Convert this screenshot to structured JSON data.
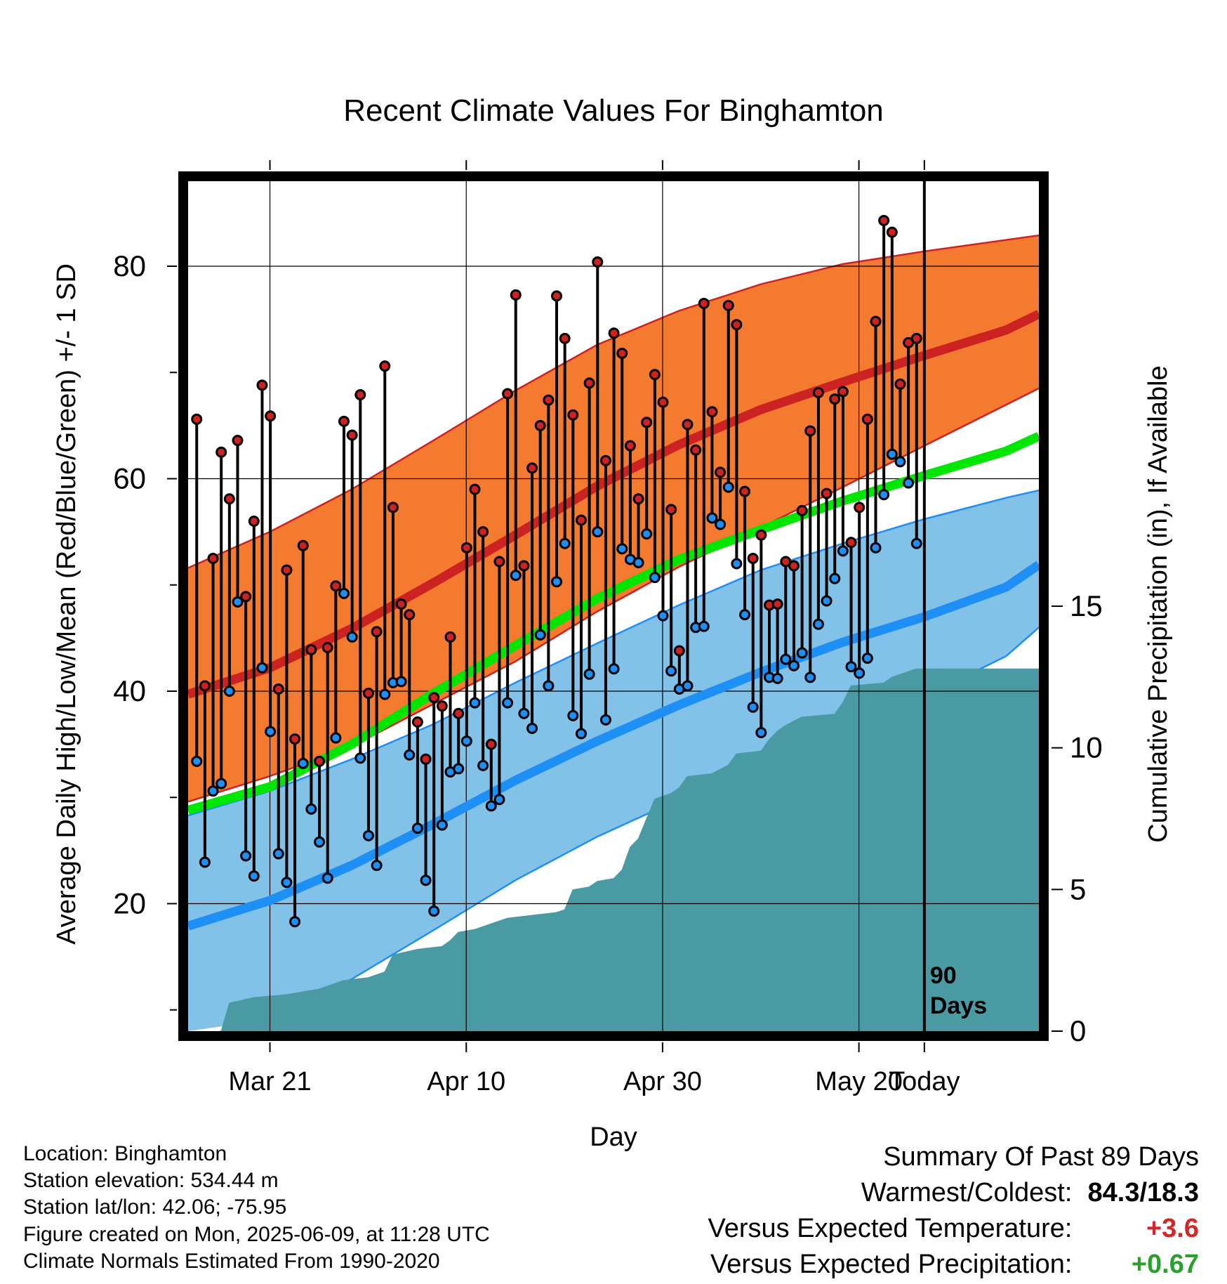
{
  "chart_data": {
    "type": "line",
    "title": "Recent Climate Values For Binghamton",
    "xlabel": "Day",
    "ylabel": "Average Daily High/Low/Mean (Red/Blue/Green) +/- 1 SD",
    "ylabel_right": "Cumulative Precipitation (in), If Available",
    "ylim": [
      8,
      88
    ],
    "y2lim": [
      0,
      30
    ],
    "yticks": [
      20,
      40,
      60,
      80
    ],
    "y2ticks": [
      0,
      5,
      10,
      15
    ],
    "x_tick_labels": [
      "Mar 21",
      "Apr 10",
      "Apr 30",
      "May 20",
      "Today"
    ],
    "marker_label": [
      "90",
      "Days"
    ],
    "grid": true,
    "expected_high": [
      [
        0,
        39.7
      ],
      [
        10,
        42.2
      ],
      [
        20,
        45.9
      ],
      [
        30,
        50.2
      ],
      [
        40,
        54.7
      ],
      [
        50,
        59.3
      ],
      [
        60,
        63.2
      ],
      [
        70,
        66.5
      ],
      [
        80,
        69.1
      ],
      [
        90,
        71.6
      ],
      [
        100,
        74.0
      ],
      [
        104,
        75.5
      ]
    ],
    "expected_high_band": {
      "upper": [
        [
          0,
          51.6
        ],
        [
          10,
          55.0
        ],
        [
          20,
          59.0
        ],
        [
          30,
          63.6
        ],
        [
          40,
          68.3
        ],
        [
          50,
          72.6
        ],
        [
          60,
          75.8
        ],
        [
          70,
          78.3
        ],
        [
          80,
          80.2
        ],
        [
          90,
          81.4
        ],
        [
          104,
          82.9
        ]
      ],
      "lower": [
        [
          0,
          29.6
        ],
        [
          10,
          32.0
        ],
        [
          20,
          34.8
        ],
        [
          30,
          38.8
        ],
        [
          40,
          42.8
        ],
        [
          50,
          47.5
        ],
        [
          60,
          51.7
        ],
        [
          70,
          55.4
        ],
        [
          80,
          59.2
        ],
        [
          90,
          63.1
        ],
        [
          104,
          68.5
        ]
      ]
    },
    "expected_low": [
      [
        0,
        17.9
      ],
      [
        10,
        20.3
      ],
      [
        20,
        23.6
      ],
      [
        30,
        27.5
      ],
      [
        40,
        31.6
      ],
      [
        50,
        35.3
      ],
      [
        60,
        38.7
      ],
      [
        70,
        41.8
      ],
      [
        80,
        44.6
      ],
      [
        90,
        47.0
      ],
      [
        100,
        49.8
      ],
      [
        104,
        51.9
      ]
    ],
    "expected_low_band": {
      "upper": [
        [
          0,
          28.3
        ],
        [
          10,
          30.6
        ],
        [
          20,
          33.6
        ],
        [
          30,
          36.9
        ],
        [
          40,
          40.8
        ],
        [
          50,
          44.5
        ],
        [
          60,
          48.1
        ],
        [
          70,
          51.4
        ],
        [
          80,
          53.9
        ],
        [
          90,
          56.2
        ],
        [
          100,
          58.2
        ],
        [
          104,
          58.9
        ]
      ],
      "lower": [
        [
          0,
          7.2
        ],
        [
          10,
          9.1
        ],
        [
          20,
          12.9
        ],
        [
          30,
          17.5
        ],
        [
          40,
          22.2
        ],
        [
          50,
          26.3
        ],
        [
          60,
          29.8
        ],
        [
          70,
          33.0
        ],
        [
          80,
          36.4
        ],
        [
          90,
          39.5
        ],
        [
          100,
          43.3
        ],
        [
          104,
          46.0
        ]
      ]
    },
    "expected_mean": [
      [
        0,
        28.8
      ],
      [
        10,
        31.0
      ],
      [
        20,
        35.0
      ],
      [
        30,
        39.8
      ],
      [
        40,
        44.3
      ],
      [
        50,
        48.7
      ],
      [
        60,
        52.4
      ],
      [
        70,
        55.2
      ],
      [
        80,
        57.9
      ],
      [
        90,
        60.3
      ],
      [
        100,
        62.6
      ],
      [
        104,
        64.0
      ]
    ],
    "daily_high": [
      65.6,
      40.5,
      52.5,
      62.5,
      58.1,
      63.6,
      48.9,
      56.0,
      68.8,
      65.9,
      40.2,
      51.4,
      35.5,
      53.7,
      43.9,
      33.4,
      44.1,
      49.9,
      65.4,
      64.1,
      67.9,
      39.8,
      45.6,
      70.6,
      57.3,
      48.2,
      47.2,
      37.1,
      33.6,
      39.4,
      38.6,
      45.1,
      37.9,
      53.5,
      59.0,
      55.0,
      35.0,
      52.2,
      68.0,
      77.3,
      51.8,
      61.0,
      65.0,
      67.4,
      77.2,
      73.2,
      66.0,
      56.1,
      69.0,
      80.4,
      61.7,
      73.7,
      71.8,
      63.1,
      58.1,
      65.3,
      69.8,
      67.2,
      57.1,
      43.8,
      65.1,
      62.7,
      76.5,
      66.3,
      60.6,
      76.3,
      74.5,
      58.8,
      52.5,
      54.7,
      48.1,
      48.2,
      52.2,
      51.8,
      57.0,
      64.5,
      68.1,
      58.6,
      67.5,
      68.2,
      54.0,
      57.3,
      65.6,
      74.8,
      84.3,
      83.2,
      68.9,
      72.8,
      73.2
    ],
    "daily_low": [
      33.4,
      23.9,
      30.6,
      31.3,
      40.0,
      48.4,
      24.5,
      22.6,
      42.2,
      36.2,
      24.7,
      22.0,
      18.3,
      33.2,
      28.9,
      25.8,
      22.4,
      35.6,
      49.2,
      45.1,
      33.7,
      26.4,
      23.6,
      39.7,
      40.8,
      40.9,
      34.0,
      27.1,
      22.2,
      19.3,
      27.4,
      32.4,
      32.7,
      35.3,
      38.9,
      33.0,
      29.2,
      29.8,
      38.9,
      50.9,
      37.9,
      36.5,
      45.3,
      40.5,
      50.3,
      53.9,
      37.7,
      36.0,
      41.6,
      55.0,
      37.3,
      42.1,
      53.4,
      52.4,
      52.1,
      54.8,
      50.7,
      47.1,
      41.9,
      40.2,
      40.5,
      46.0,
      46.1,
      56.3,
      55.7,
      59.2,
      52.0,
      47.2,
      38.5,
      36.1,
      41.3,
      41.2,
      43.0,
      42.4,
      43.6,
      41.3,
      46.3,
      48.5,
      50.6,
      53.2,
      42.3,
      41.7,
      43.1,
      53.5,
      58.5,
      62.3,
      61.6,
      59.6,
      53.9
    ],
    "precip_cumulative": [
      [
        0,
        0.0
      ],
      [
        4,
        0.0
      ],
      [
        5,
        1.0
      ],
      [
        8,
        1.2
      ],
      [
        12,
        1.3
      ],
      [
        16,
        1.5
      ],
      [
        19,
        1.8
      ],
      [
        22,
        1.9
      ],
      [
        24,
        2.1
      ],
      [
        25,
        2.7
      ],
      [
        28,
        2.9
      ],
      [
        31,
        3.0
      ],
      [
        32,
        3.2
      ],
      [
        33,
        3.5
      ],
      [
        35,
        3.6
      ],
      [
        37,
        3.8
      ],
      [
        39,
        4.0
      ],
      [
        42,
        4.1
      ],
      [
        45,
        4.2
      ],
      [
        46,
        4.3
      ],
      [
        47,
        5.0
      ],
      [
        49,
        5.1
      ],
      [
        50,
        5.3
      ],
      [
        52,
        5.4
      ],
      [
        53,
        5.7
      ],
      [
        54,
        6.5
      ],
      [
        55,
        6.8
      ],
      [
        56,
        7.5
      ],
      [
        57,
        8.2
      ],
      [
        59,
        8.4
      ],
      [
        60,
        8.6
      ],
      [
        61,
        9.0
      ],
      [
        64,
        9.1
      ],
      [
        66,
        9.4
      ],
      [
        67,
        9.8
      ],
      [
        70,
        9.9
      ],
      [
        71,
        10.3
      ],
      [
        72,
        10.6
      ],
      [
        73,
        10.8
      ],
      [
        75,
        11.1
      ],
      [
        79,
        11.2
      ],
      [
        80,
        11.6
      ],
      [
        81,
        12.2
      ],
      [
        85,
        12.3
      ],
      [
        86,
        12.5
      ],
      [
        88,
        12.7
      ],
      [
        89,
        12.8
      ],
      [
        104,
        12.8
      ]
    ],
    "colors": {
      "high_band": "#f47a30",
      "high_line": "#cc2222",
      "low_band": "#82c1e8",
      "low_line": "#1e8ff5",
      "mean_line": "#00e600",
      "precip": "#4a9aa3",
      "high_dot": "#cc2222",
      "low_dot": "#1e8ff5"
    }
  },
  "station_info": [
    "Location: Binghamton",
    "Station elevation: 534.44 m",
    "Station lat/lon: 42.06; -75.95",
    "Figure created on Mon, 2025-06-09, at 11:28 UTC",
    "Climate Normals Estimated From 1990-2020"
  ],
  "summary": {
    "heading": "Summary Of Past 89 Days",
    "warmest_coldest_label": "Warmest/Coldest:",
    "warmest_coldest_value": "84.3/18.3",
    "temp_label": "Versus Expected Temperature:",
    "temp_value": "+3.6",
    "temp_color": "#d62728",
    "precip_label": "Versus Expected Precipitation:",
    "precip_value": "+0.67",
    "precip_color": "#2ca02c"
  }
}
